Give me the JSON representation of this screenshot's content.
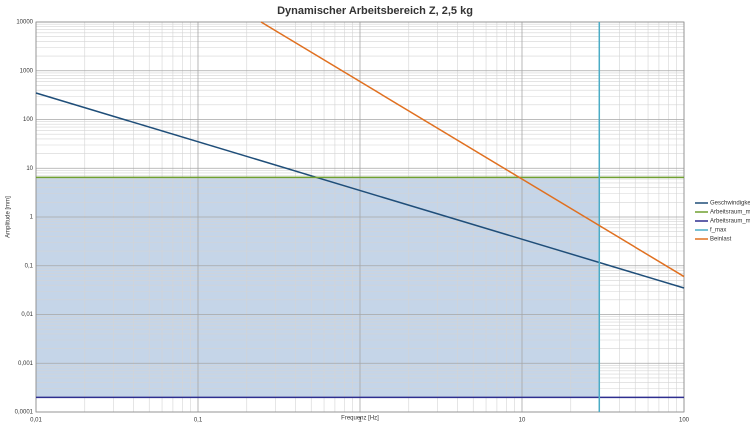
{
  "chart_data": {
    "type": "line",
    "title": "Dynamischer Arbeitsbereich Z, 2,5 kg",
    "xlabel": "Frequenz [Hz]",
    "ylabel": "Amplitude [mm]",
    "xscale": "log",
    "yscale": "log",
    "xlim": [
      0.01,
      100
    ],
    "ylim": [
      0.0001,
      10000
    ],
    "xticks": [
      {
        "value": 0.01,
        "label": "0,01"
      },
      {
        "value": 0.1,
        "label": "0,1"
      },
      1,
      10,
      100
    ],
    "yticks": [
      {
        "value": 0.0001,
        "label": "0,0001"
      },
      {
        "value": 0.001,
        "label": "0,001"
      },
      {
        "value": 0.01,
        "label": "0,01"
      },
      {
        "value": 0.1,
        "label": "0,1"
      },
      1,
      10,
      100,
      1000,
      10000
    ],
    "grid": true,
    "minor_grid": true,
    "legend": "right",
    "fill_color": "#c5d5e8",
    "series": [
      {
        "name": "Geschwindigkeit",
        "color": "#1f4e79",
        "x": [
          0.01,
          100
        ],
        "values": [
          350,
          0.035
        ]
      },
      {
        "name": "Arbeitsraum_max",
        "color": "#70a030",
        "x": [
          0.01,
          100
        ],
        "values": [
          6.5,
          6.5
        ]
      },
      {
        "name": "Arbeitsraum_min",
        "color": "#2e2e8f",
        "x": [
          0.01,
          100
        ],
        "values": [
          0.0002,
          0.0002
        ]
      },
      {
        "name": "f_max",
        "color": "#4bacc6",
        "x": [
          30,
          30
        ],
        "values": [
          0.0001,
          10000
        ]
      },
      {
        "name": "Beinlast",
        "color": "#e07020",
        "x": [
          0.245,
          100
        ],
        "values": [
          10000,
          0.06
        ]
      }
    ]
  }
}
